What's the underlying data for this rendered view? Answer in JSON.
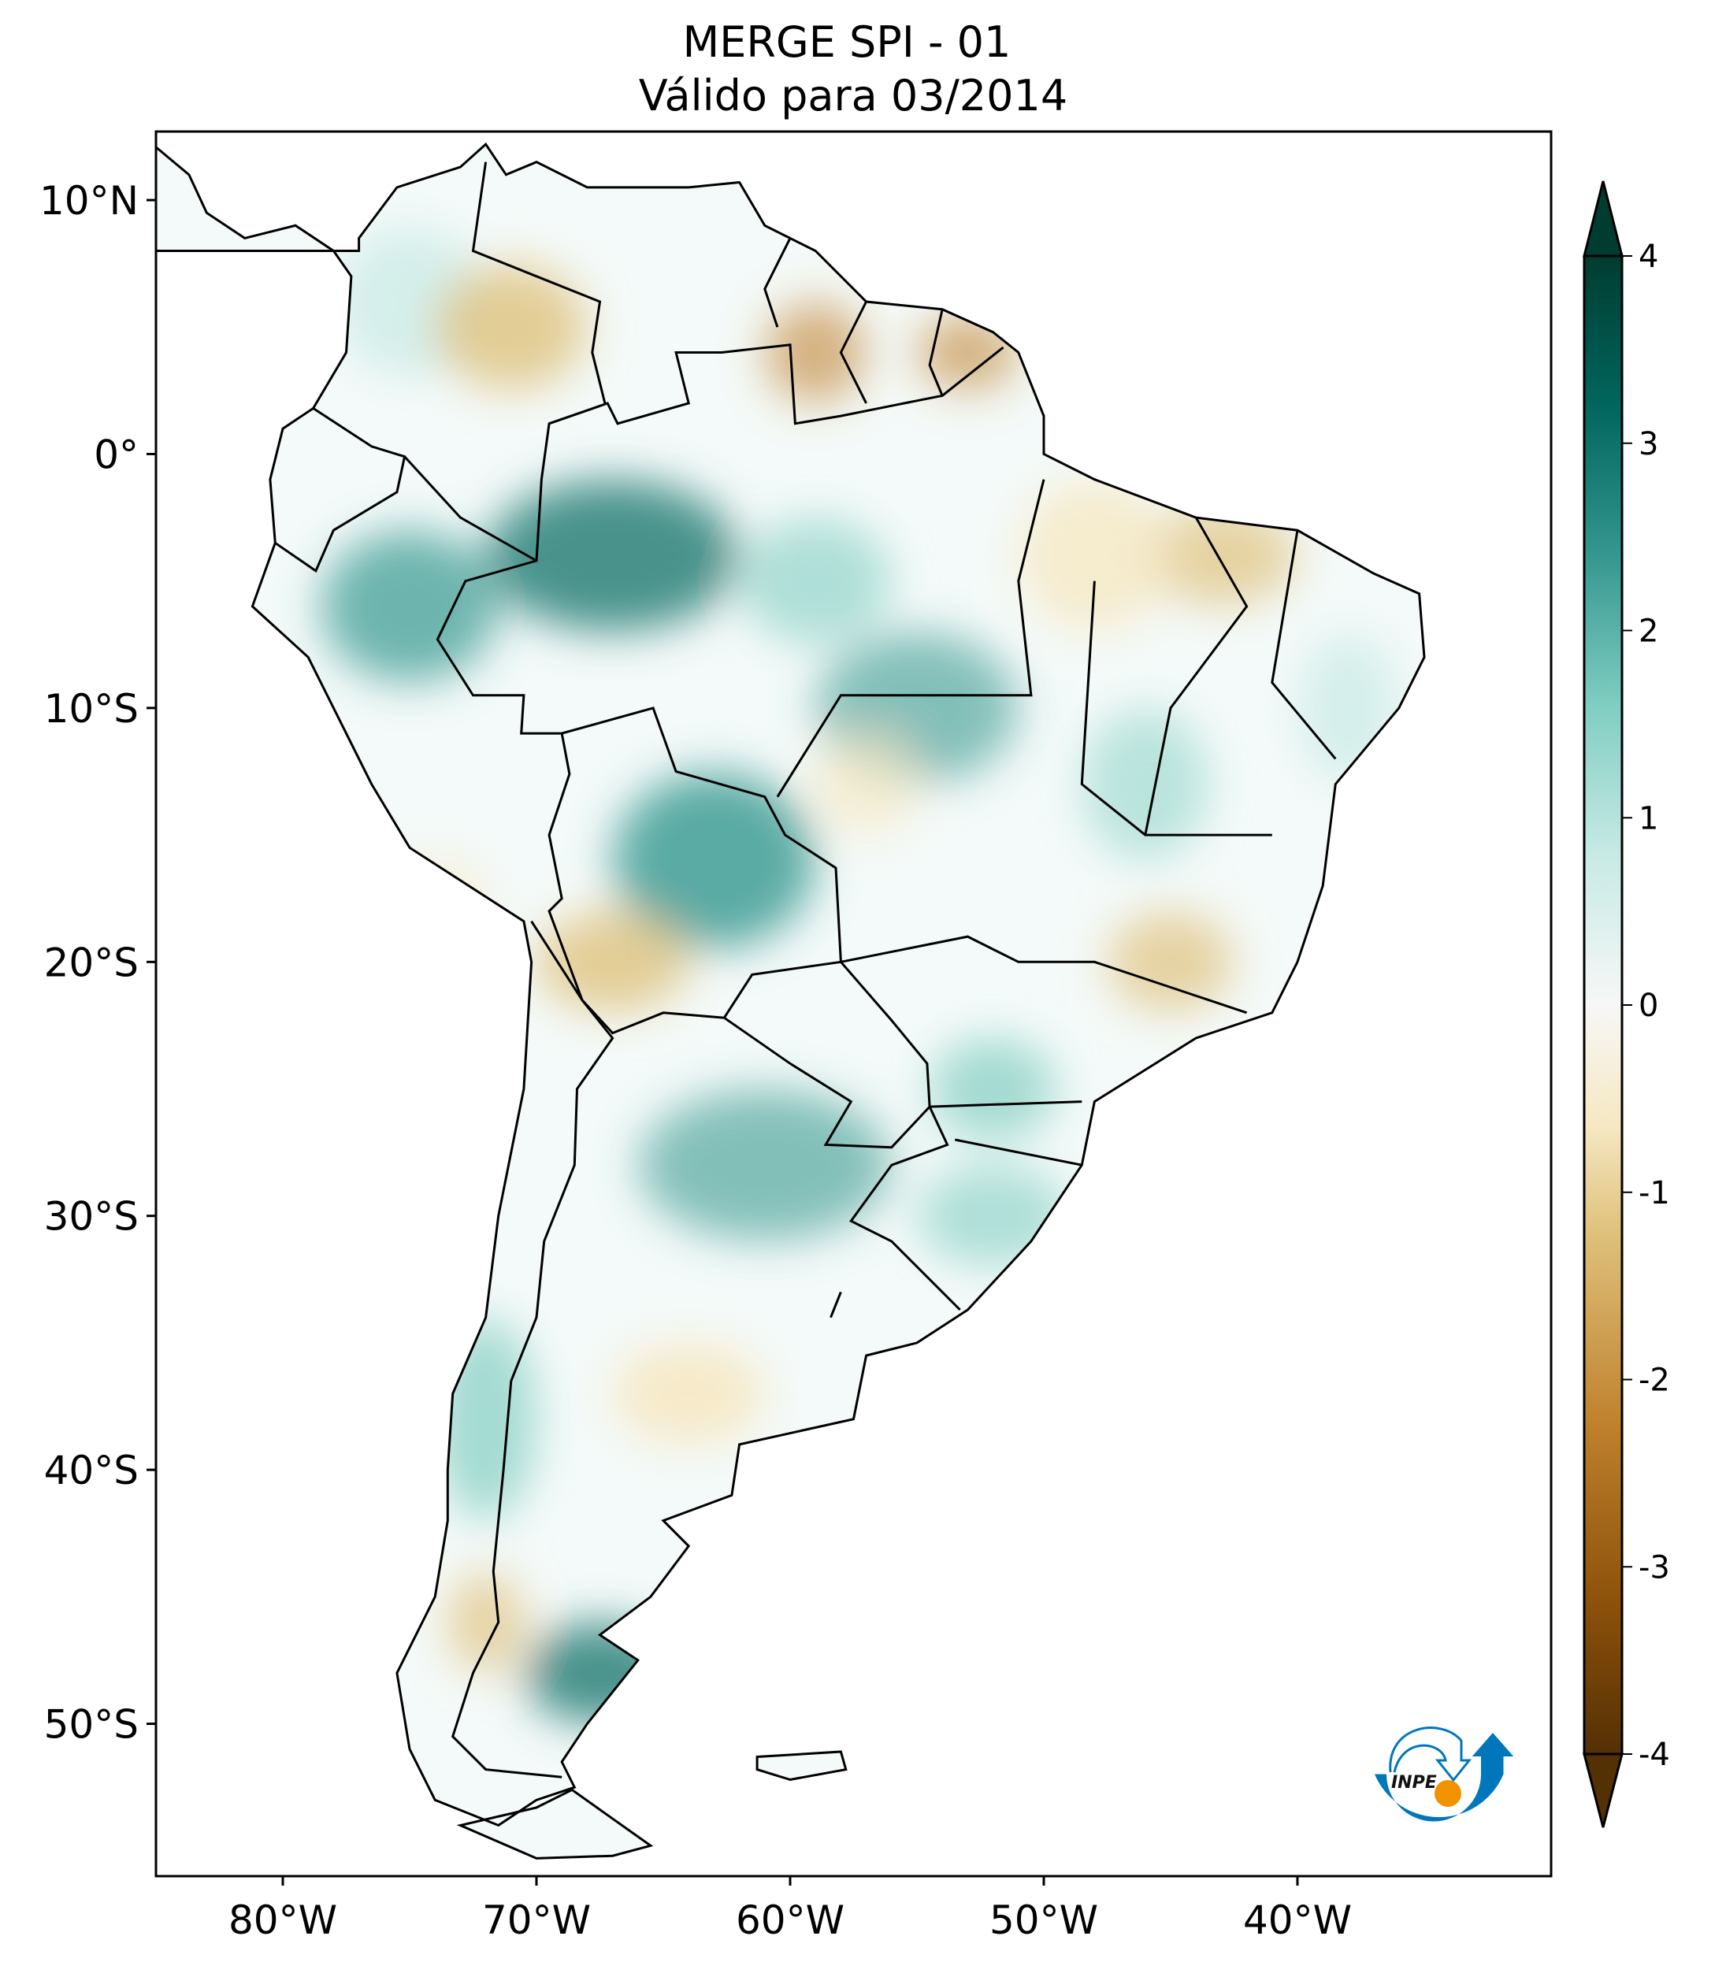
{
  "title": {
    "line1": "MERGE   SPI - 01",
    "line2": "Válido para 03/2014"
  },
  "map": {
    "projection": "plate carree",
    "lon_range": [
      -85,
      -30
    ],
    "lat_range": [
      -56,
      12.7
    ],
    "x_ticks": [
      {
        "value": -80,
        "label": "80°W"
      },
      {
        "value": -70,
        "label": "70°W"
      },
      {
        "value": -60,
        "label": "60°W"
      },
      {
        "value": -50,
        "label": "50°W"
      },
      {
        "value": -40,
        "label": "40°W"
      }
    ],
    "y_ticks": [
      {
        "value": 10,
        "label": "10°N"
      },
      {
        "value": 0,
        "label": "0°"
      },
      {
        "value": -10,
        "label": "10°S"
      },
      {
        "value": -20,
        "label": "20°S"
      },
      {
        "value": -30,
        "label": "30°S"
      },
      {
        "value": -40,
        "label": "40°S"
      },
      {
        "value": -50,
        "label": "50°S"
      }
    ]
  },
  "colorbar": {
    "colormap": "BrBG",
    "range": [
      -4,
      4
    ],
    "extend": "both",
    "ticks": [
      "4",
      "3",
      "2",
      "1",
      "0",
      "-1",
      "-2",
      "-3",
      "-4"
    ],
    "colors": [
      "#543005",
      "#8c510a",
      "#bf812d",
      "#dfc27d",
      "#f6e8c3",
      "#f5f5f5",
      "#c7eae5",
      "#80cdc1",
      "#35978f",
      "#01665e",
      "#003c30"
    ]
  },
  "logo": {
    "text": "INPE",
    "colors": {
      "blue": "#0077bb",
      "orange": "#f39200"
    }
  }
}
